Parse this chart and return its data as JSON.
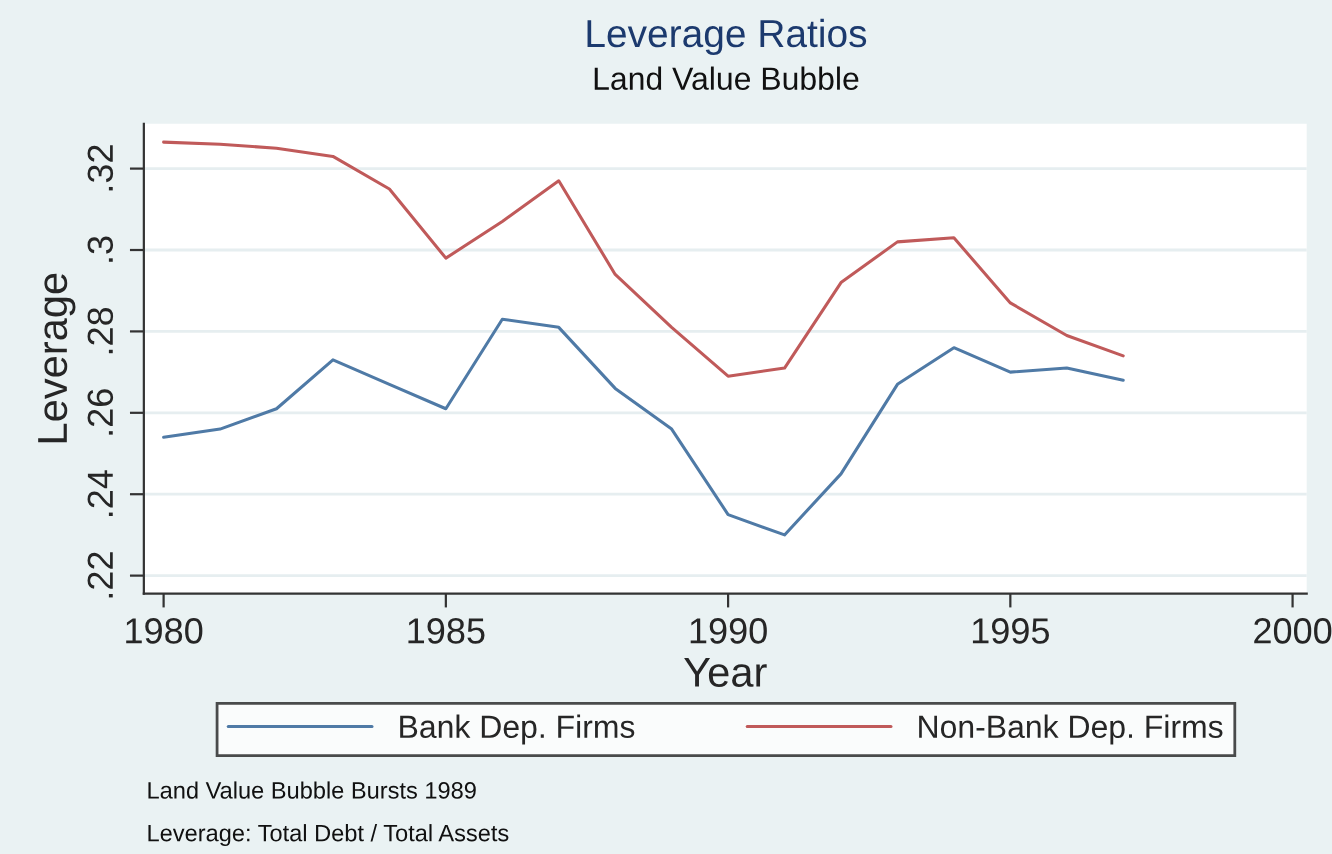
{
  "chart_data": {
    "type": "line",
    "title": "Leverage Ratios",
    "subtitle": "Land Value Bubble",
    "xlabel": "Year",
    "ylabel": "Leverage",
    "x": [
      1980,
      1981,
      1982,
      1983,
      1984,
      1985,
      1986,
      1987,
      1988,
      1989,
      1990,
      1991,
      1992,
      1993,
      1994,
      1995,
      1996,
      1997
    ],
    "series": [
      {
        "name": "Bank Dep. Firms",
        "color": "#4f7aa6",
        "values": [
          0.254,
          0.256,
          0.261,
          0.273,
          0.267,
          0.261,
          0.283,
          0.281,
          0.266,
          0.256,
          0.235,
          0.23,
          0.245,
          0.267,
          0.276,
          0.27,
          0.271,
          0.268
        ]
      },
      {
        "name": "Non-Bank Dep. Firms",
        "color": "#c05a5a",
        "values": [
          0.3265,
          0.326,
          0.325,
          0.323,
          0.315,
          0.298,
          0.307,
          0.317,
          0.294,
          0.281,
          0.269,
          0.271,
          0.292,
          0.302,
          0.303,
          0.287,
          0.279,
          0.274
        ]
      }
    ],
    "xlim": [
      1979.65,
      2000.25
    ],
    "xticks": [
      1980,
      1985,
      1990,
      1995,
      2000
    ],
    "ylim": [
      0.2156,
      0.331
    ],
    "yticks": [
      {
        "value": 0.22,
        "label": ".22"
      },
      {
        "value": 0.24,
        "label": ".24"
      },
      {
        "value": 0.26,
        "label": ".26"
      },
      {
        "value": 0.28,
        "label": ".28"
      },
      {
        "value": 0.3,
        "label": ".3"
      },
      {
        "value": 0.32,
        "label": ".32"
      }
    ],
    "grid": "y",
    "legend": "bottom",
    "line_style": "solid",
    "marker": "none",
    "annotations": [
      "Land Value Bubble Bursts 1989",
      "Leverage: Total Debt / Total Assets"
    ]
  }
}
